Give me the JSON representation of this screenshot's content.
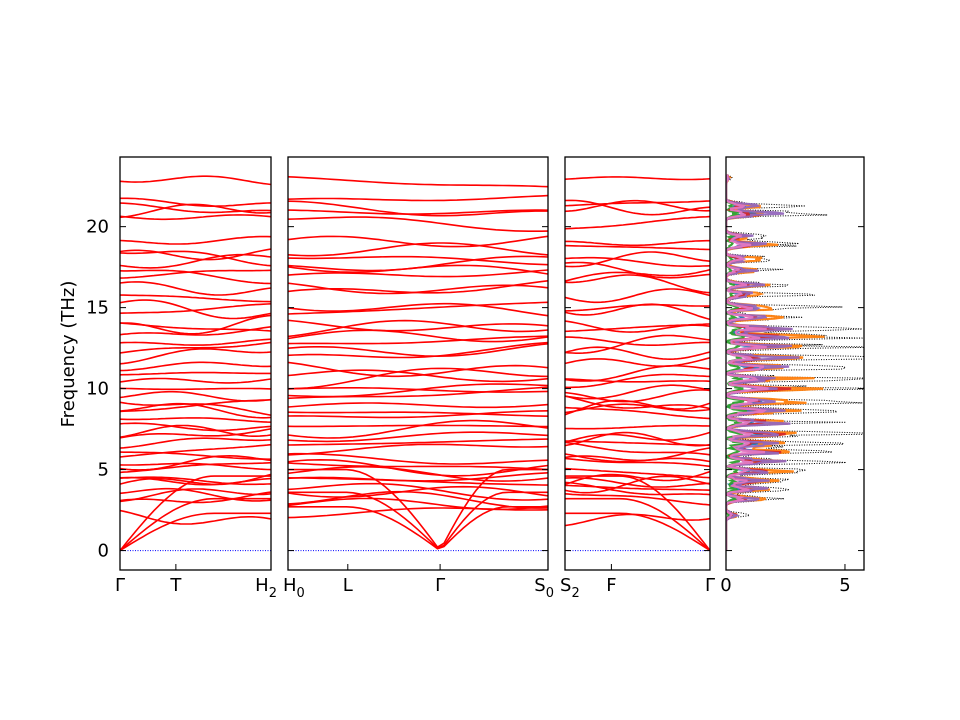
{
  "chart_data": {
    "type": "line",
    "ylabel": "Frequency (THz)",
    "ylim": [
      -1.2,
      24.3
    ],
    "yticks": [
      "0",
      "5",
      "10",
      "15",
      "20"
    ],
    "band_color": "#ff0000",
    "zero_line_color": "#0000ff",
    "panels": [
      {
        "labels": [
          "Γ",
          "T",
          "H"
        ],
        "label_sub": [
          "",
          "",
          "2"
        ]
      },
      {
        "labels": [
          "H",
          "L",
          "Γ",
          "S"
        ],
        "label_sub": [
          "0",
          "",
          "",
          "0"
        ]
      },
      {
        "labels": [
          "S",
          "F",
          "Γ"
        ],
        "label_sub": [
          "2",
          "",
          ""
        ]
      }
    ],
    "band_endpoints_gamma": [
      0,
      0,
      0,
      2.2,
      2.9,
      3.3,
      3.7,
      4.0,
      4.3,
      4.5,
      4.9,
      5.2,
      5.4,
      5.8,
      6.1,
      6.5,
      6.9,
      7.3,
      7.7,
      8.2,
      8.6,
      8.9,
      9.3,
      9.6,
      10.0,
      10.4,
      10.9,
      11.3,
      11.8,
      12.2,
      12.7,
      13.2,
      13.6,
      14.0,
      14.6,
      15.2,
      15.8,
      16.3,
      16.9,
      17.4,
      17.6,
      18.2,
      18.6,
      19.0,
      20.6,
      20.9,
      21.3,
      21.6,
      23.0
    ],
    "dos": {
      "xlim": [
        0,
        5.8
      ],
      "xticks": [
        "0",
        "5"
      ],
      "total_color": "#000000",
      "projected_colors": [
        "#1f77b4",
        "#ff7f0e",
        "#2ca02c",
        "#d62728",
        "#9467bd",
        "#e377c2"
      ],
      "peak_freqs": [
        2.2,
        3.2,
        3.8,
        4.3,
        4.9,
        5.5,
        6.1,
        6.6,
        7.2,
        7.9,
        8.6,
        9.2,
        10.0,
        10.6,
        11.3,
        11.9,
        12.6,
        13.2,
        13.7,
        14.4,
        15.0,
        15.8,
        16.4,
        17.3,
        18.0,
        18.9,
        19.4,
        20.8,
        21.3,
        23.0
      ],
      "peak_total": [
        0.9,
        2.6,
        3.1,
        3.6,
        4.0,
        4.6,
        4.8,
        5.1,
        5.4,
        4.9,
        5.3,
        5.4,
        5.6,
        5.2,
        5.5,
        5.3,
        5.4,
        5.6,
        5.1,
        3.3,
        3.9,
        3.1,
        2.9,
        2.2,
        2.6,
        3.1,
        2.0,
        4.0,
        2.6,
        0.3
      ]
    }
  }
}
